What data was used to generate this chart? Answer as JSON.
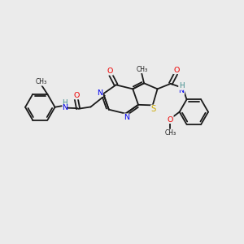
{
  "background_color": "#ebebeb",
  "bond_color": "#1a1a1a",
  "atom_colors": {
    "N": "#0000ee",
    "O": "#ee0000",
    "S": "#ccaa00",
    "H": "#3a8a8a",
    "C": "#1a1a1a"
  },
  "figsize": [
    3.0,
    3.0
  ],
  "dpi": 100,
  "xlim": [
    0,
    10
  ],
  "ylim": [
    0,
    10
  ]
}
